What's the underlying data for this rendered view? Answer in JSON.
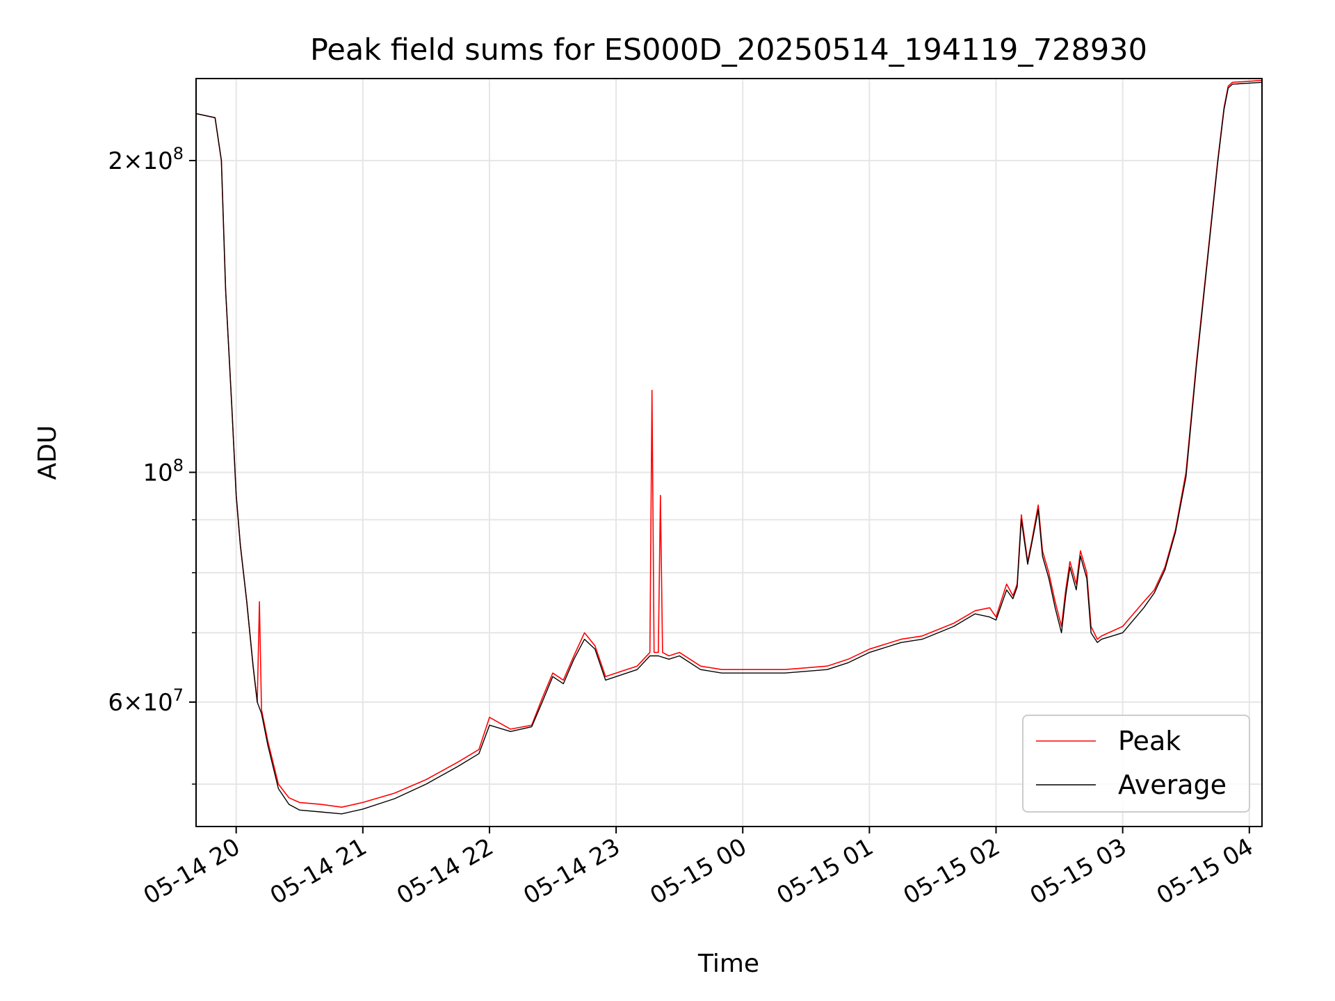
{
  "chart_data": {
    "type": "line",
    "title": "Peak field sums for ES000D_20250514_194119_728930",
    "xlabel": "Time",
    "ylabel": "ADU",
    "y_scale": "log",
    "ylim": [
      45500000,
      240000000
    ],
    "xlim": [
      "2025-05-14 19:41",
      "2025-05-15 04:06"
    ],
    "grid": true,
    "legend_position": "lower-right",
    "x_ticks": [
      {
        "value": "2025-05-14 20:00",
        "label": "05-14 20"
      },
      {
        "value": "2025-05-14 21:00",
        "label": "05-14 21"
      },
      {
        "value": "2025-05-14 22:00",
        "label": "05-14 22"
      },
      {
        "value": "2025-05-14 23:00",
        "label": "05-14 23"
      },
      {
        "value": "2025-05-15 00:00",
        "label": "05-15 00"
      },
      {
        "value": "2025-05-15 01:00",
        "label": "05-15 01"
      },
      {
        "value": "2025-05-15 02:00",
        "label": "05-15 02"
      },
      {
        "value": "2025-05-15 03:00",
        "label": "05-15 03"
      },
      {
        "value": "2025-05-15 04:00",
        "label": "05-15 04"
      }
    ],
    "y_major_ticks": [
      {
        "value": 60000000,
        "mantissa": "6",
        "exponent": "7"
      },
      {
        "value": 100000000,
        "mantissa": "",
        "exponent": "8"
      },
      {
        "value": 200000000,
        "mantissa": "2",
        "exponent": "8"
      }
    ],
    "y_minor_ticks": [
      50000000,
      70000000,
      80000000,
      90000000
    ],
    "series": [
      {
        "name": "Peak",
        "color": "#ff0000",
        "x": [
          "2025-05-14 19:41",
          "2025-05-14 19:50",
          "2025-05-14 19:53",
          "2025-05-14 19:55",
          "2025-05-14 19:58",
          "2025-05-14 20:00",
          "2025-05-14 20:02",
          "2025-05-14 20:05",
          "2025-05-14 20:08",
          "2025-05-14 20:10",
          "2025-05-14 20:11",
          "2025-05-14 20:12",
          "2025-05-14 20:15",
          "2025-05-14 20:20",
          "2025-05-14 20:25",
          "2025-05-14 20:30",
          "2025-05-14 20:40",
          "2025-05-14 20:50",
          "2025-05-14 21:00",
          "2025-05-14 21:15",
          "2025-05-14 21:30",
          "2025-05-14 21:45",
          "2025-05-14 21:55",
          "2025-05-14 22:00",
          "2025-05-14 22:10",
          "2025-05-14 22:20",
          "2025-05-14 22:25",
          "2025-05-14 22:30",
          "2025-05-14 22:35",
          "2025-05-14 22:40",
          "2025-05-14 22:45",
          "2025-05-14 22:50",
          "2025-05-14 22:55",
          "2025-05-14 23:00",
          "2025-05-14 23:10",
          "2025-05-14 23:16",
          "2025-05-14 23:17",
          "2025-05-14 23:18",
          "2025-05-14 23:20",
          "2025-05-14 23:21",
          "2025-05-14 23:22",
          "2025-05-14 23:25",
          "2025-05-14 23:30",
          "2025-05-14 23:40",
          "2025-05-14 23:50",
          "2025-05-15 00:00",
          "2025-05-15 00:20",
          "2025-05-15 00:40",
          "2025-05-15 00:50",
          "2025-05-15 01:00",
          "2025-05-15 01:15",
          "2025-05-15 01:25",
          "2025-05-15 01:40",
          "2025-05-15 01:50",
          "2025-05-15 01:57",
          "2025-05-15 02:00",
          "2025-05-15 02:05",
          "2025-05-15 02:08",
          "2025-05-15 02:10",
          "2025-05-15 02:12",
          "2025-05-15 02:15",
          "2025-05-15 02:17",
          "2025-05-15 02:20",
          "2025-05-15 02:22",
          "2025-05-15 02:25",
          "2025-05-15 02:28",
          "2025-05-15 02:31",
          "2025-05-15 02:33",
          "2025-05-15 02:35",
          "2025-05-15 02:38",
          "2025-05-15 02:40",
          "2025-05-15 02:43",
          "2025-05-15 02:45",
          "2025-05-15 02:48",
          "2025-05-15 02:50",
          "2025-05-15 03:00",
          "2025-05-15 03:10",
          "2025-05-15 03:15",
          "2025-05-15 03:20",
          "2025-05-15 03:25",
          "2025-05-15 03:30",
          "2025-05-15 03:35",
          "2025-05-15 03:40",
          "2025-05-15 03:45",
          "2025-05-15 03:48",
          "2025-05-15 03:50",
          "2025-05-15 03:52",
          "2025-05-15 04:06"
        ],
        "values": [
          222000000,
          220000000,
          200000000,
          150000000,
          115000000,
          95000000,
          85000000,
          75000000,
          65000000,
          60000000,
          75000000,
          59000000,
          55000000,
          50000000,
          48500000,
          48000000,
          47800000,
          47500000,
          48000000,
          49000000,
          50500000,
          52500000,
          54000000,
          58000000,
          56500000,
          57000000,
          60500000,
          64000000,
          63000000,
          66500000,
          70000000,
          68000000,
          63500000,
          64000000,
          65000000,
          67000000,
          120000000,
          67000000,
          67000000,
          95000000,
          67000000,
          66500000,
          67000000,
          65000000,
          64500000,
          64500000,
          64500000,
          65000000,
          66000000,
          67500000,
          69000000,
          69500000,
          71500000,
          73500000,
          74000000,
          72500000,
          78000000,
          76000000,
          78000000,
          91000000,
          82000000,
          86000000,
          93000000,
          84000000,
          80000000,
          75000000,
          71000000,
          77000000,
          82000000,
          78000000,
          84000000,
          80000000,
          71000000,
          69000000,
          69500000,
          71000000,
          75000000,
          77000000,
          81000000,
          88000000,
          100000000,
          128000000,
          160000000,
          200000000,
          225000000,
          236000000,
          238000000,
          239000000
        ]
      },
      {
        "name": "Average",
        "color": "#000000",
        "x": [
          "2025-05-14 19:41",
          "2025-05-14 19:50",
          "2025-05-14 19:53",
          "2025-05-14 19:55",
          "2025-05-14 19:58",
          "2025-05-14 20:00",
          "2025-05-14 20:02",
          "2025-05-14 20:05",
          "2025-05-14 20:08",
          "2025-05-14 20:10",
          "2025-05-14 20:12",
          "2025-05-14 20:15",
          "2025-05-14 20:20",
          "2025-05-14 20:25",
          "2025-05-14 20:30",
          "2025-05-14 20:40",
          "2025-05-14 20:50",
          "2025-05-14 21:00",
          "2025-05-14 21:15",
          "2025-05-14 21:30",
          "2025-05-14 21:45",
          "2025-05-14 21:55",
          "2025-05-14 22:00",
          "2025-05-14 22:10",
          "2025-05-14 22:20",
          "2025-05-14 22:25",
          "2025-05-14 22:30",
          "2025-05-14 22:35",
          "2025-05-14 22:40",
          "2025-05-14 22:45",
          "2025-05-14 22:50",
          "2025-05-14 22:55",
          "2025-05-14 23:00",
          "2025-05-14 23:10",
          "2025-05-14 23:16",
          "2025-05-14 23:20",
          "2025-05-14 23:25",
          "2025-05-14 23:30",
          "2025-05-14 23:40",
          "2025-05-14 23:50",
          "2025-05-15 00:00",
          "2025-05-15 00:20",
          "2025-05-15 00:40",
          "2025-05-15 00:50",
          "2025-05-15 01:00",
          "2025-05-15 01:15",
          "2025-05-15 01:25",
          "2025-05-15 01:40",
          "2025-05-15 01:50",
          "2025-05-15 01:57",
          "2025-05-15 02:00",
          "2025-05-15 02:05",
          "2025-05-15 02:08",
          "2025-05-15 02:10",
          "2025-05-15 02:12",
          "2025-05-15 02:15",
          "2025-05-15 02:17",
          "2025-05-15 02:20",
          "2025-05-15 02:22",
          "2025-05-15 02:25",
          "2025-05-15 02:28",
          "2025-05-15 02:31",
          "2025-05-15 02:33",
          "2025-05-15 02:35",
          "2025-05-15 02:38",
          "2025-05-15 02:40",
          "2025-05-15 02:43",
          "2025-05-15 02:45",
          "2025-05-15 02:48",
          "2025-05-15 02:50",
          "2025-05-15 03:00",
          "2025-05-15 03:10",
          "2025-05-15 03:15",
          "2025-05-15 03:20",
          "2025-05-15 03:25",
          "2025-05-15 03:30",
          "2025-05-15 03:35",
          "2025-05-15 03:40",
          "2025-05-15 03:45",
          "2025-05-15 03:48",
          "2025-05-15 03:50",
          "2025-05-15 03:52",
          "2025-05-15 04:06"
        ],
        "values": [
          222000000,
          220000000,
          200000000,
          150000000,
          115000000,
          95000000,
          85000000,
          75000000,
          65000000,
          60000000,
          58500000,
          54500000,
          49500000,
          47800000,
          47200000,
          47000000,
          46800000,
          47300000,
          48400000,
          50000000,
          52000000,
          53500000,
          57000000,
          56200000,
          56800000,
          60000000,
          63500000,
          62500000,
          66000000,
          69000000,
          67500000,
          63000000,
          63500000,
          64500000,
          66500000,
          66500000,
          66000000,
          66500000,
          64500000,
          64000000,
          64000000,
          64000000,
          64500000,
          65500000,
          67000000,
          68500000,
          69000000,
          71000000,
          73000000,
          72500000,
          72000000,
          77000000,
          75500000,
          77500000,
          90000000,
          81500000,
          85500000,
          92000000,
          83000000,
          79000000,
          74000000,
          70000000,
          76000000,
          81000000,
          77000000,
          83000000,
          79000000,
          70000000,
          68500000,
          69000000,
          70000000,
          74000000,
          76500000,
          80500000,
          87500000,
          99000000,
          127000000,
          159000000,
          199000000,
          224000000,
          235000000,
          237000000,
          238000000
        ]
      }
    ]
  }
}
